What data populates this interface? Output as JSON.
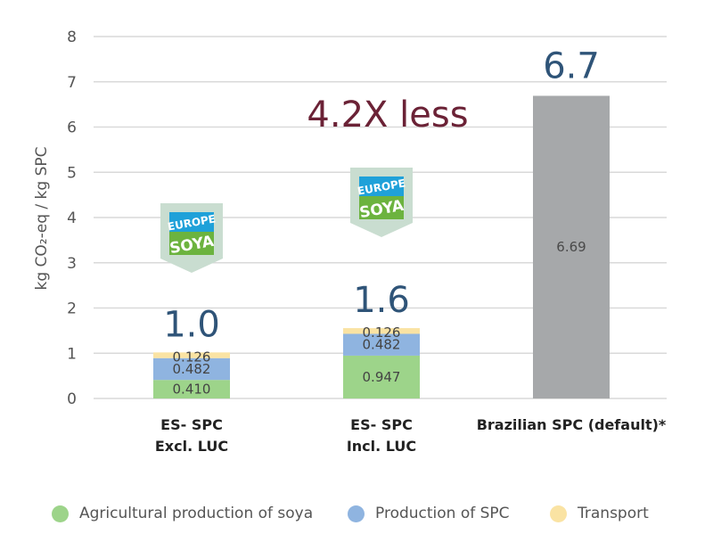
{
  "chart_data": {
    "type": "bar",
    "stacked": true,
    "ylabel": "kg CO₂-eq / kg SPC",
    "ylim": [
      0,
      8
    ],
    "yticks": [
      "0",
      "1",
      "2",
      "3",
      "4",
      "5",
      "6",
      "7",
      "8"
    ],
    "grid": true,
    "categories": [
      {
        "line1": "ES- SPC",
        "line2": "Excl. LUC"
      },
      {
        "line1": "ES- SPC",
        "line2": "Incl. LUC"
      },
      {
        "line1": "Brazilian SPC (default)*",
        "line2": ""
      }
    ],
    "series": [
      {
        "name": "Agricultural production of soya",
        "color": "#9dd48a",
        "values": [
          0.41,
          0.947,
          0
        ],
        "labels": [
          "0.410",
          "0.947",
          ""
        ]
      },
      {
        "name": "Production of SPC",
        "color": "#8fb4e0",
        "values": [
          0.482,
          0.482,
          0
        ],
        "labels": [
          "0.482",
          "0.482",
          ""
        ]
      },
      {
        "name": "Transport",
        "color": "#fae3a3",
        "values": [
          0.126,
          0.126,
          0
        ],
        "labels": [
          "0.126",
          "0.126",
          ""
        ]
      },
      {
        "name": "",
        "color": "#a6a8aa",
        "values": [
          0,
          0,
          6.69
        ],
        "labels": [
          "",
          "",
          "6.69"
        ]
      }
    ],
    "totals": [
      "1.0",
      "1.6",
      "6.7"
    ],
    "annotation": "4.2X less",
    "badges": [
      {
        "line1": "EUROPE",
        "line2": "SOYA"
      },
      {
        "line1": "EUROPE",
        "line2": "SOYA"
      }
    ],
    "legend_position": "bottom",
    "colors": {
      "total": "#2f5478",
      "annotation": "#6b2236",
      "grid": "#d9d9d9",
      "badge_green": "#6cb33f",
      "badge_blue": "#1fa1d9",
      "badge_frame": "#c9ddd0"
    }
  }
}
